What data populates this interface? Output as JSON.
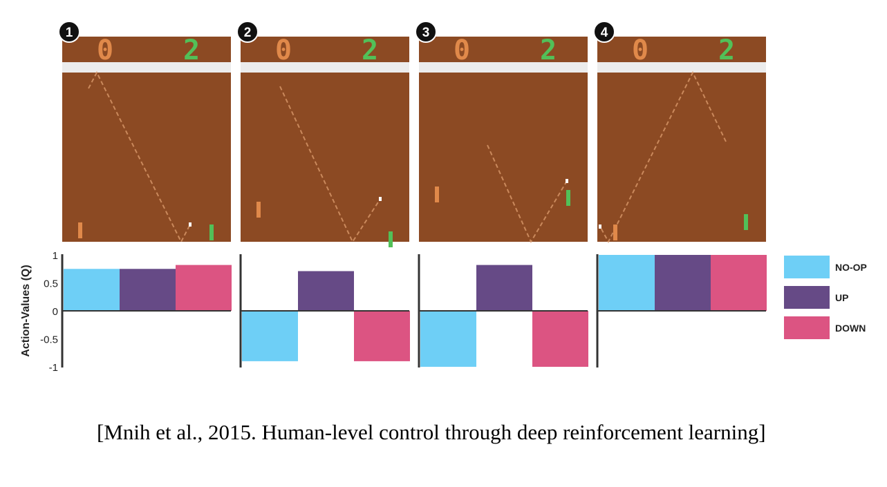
{
  "scores": {
    "left": "0",
    "right": "2"
  },
  "panels": [
    "1",
    "2",
    "3",
    "4"
  ],
  "citation": "[Mnih et al., 2015. Human-level control through deep reinforcement learning]",
  "colors": {
    "field": "#8c4a23",
    "left_paddle": "#e0894a",
    "right_paddle": "#52c058",
    "NO-OP": "#6ecff6",
    "UP": "#664a86",
    "DOWN": "#dc5482"
  },
  "chart_data": {
    "type": "bar",
    "ylabel": "Action-Values (Q)",
    "ylim": [
      -1,
      1
    ],
    "yticks": [
      "1",
      "0.5",
      "0",
      "-0.5",
      "-1"
    ],
    "categories": [
      "1",
      "2",
      "3",
      "4"
    ],
    "series": [
      {
        "name": "NO-OP",
        "values": [
          0.75,
          -0.9,
          -1.0,
          1.0
        ]
      },
      {
        "name": "UP",
        "values": [
          0.75,
          0.71,
          0.82,
          1.0
        ]
      },
      {
        "name": "DOWN",
        "values": [
          0.82,
          -0.9,
          -1.0,
          1.0
        ]
      }
    ],
    "legend": "right"
  }
}
